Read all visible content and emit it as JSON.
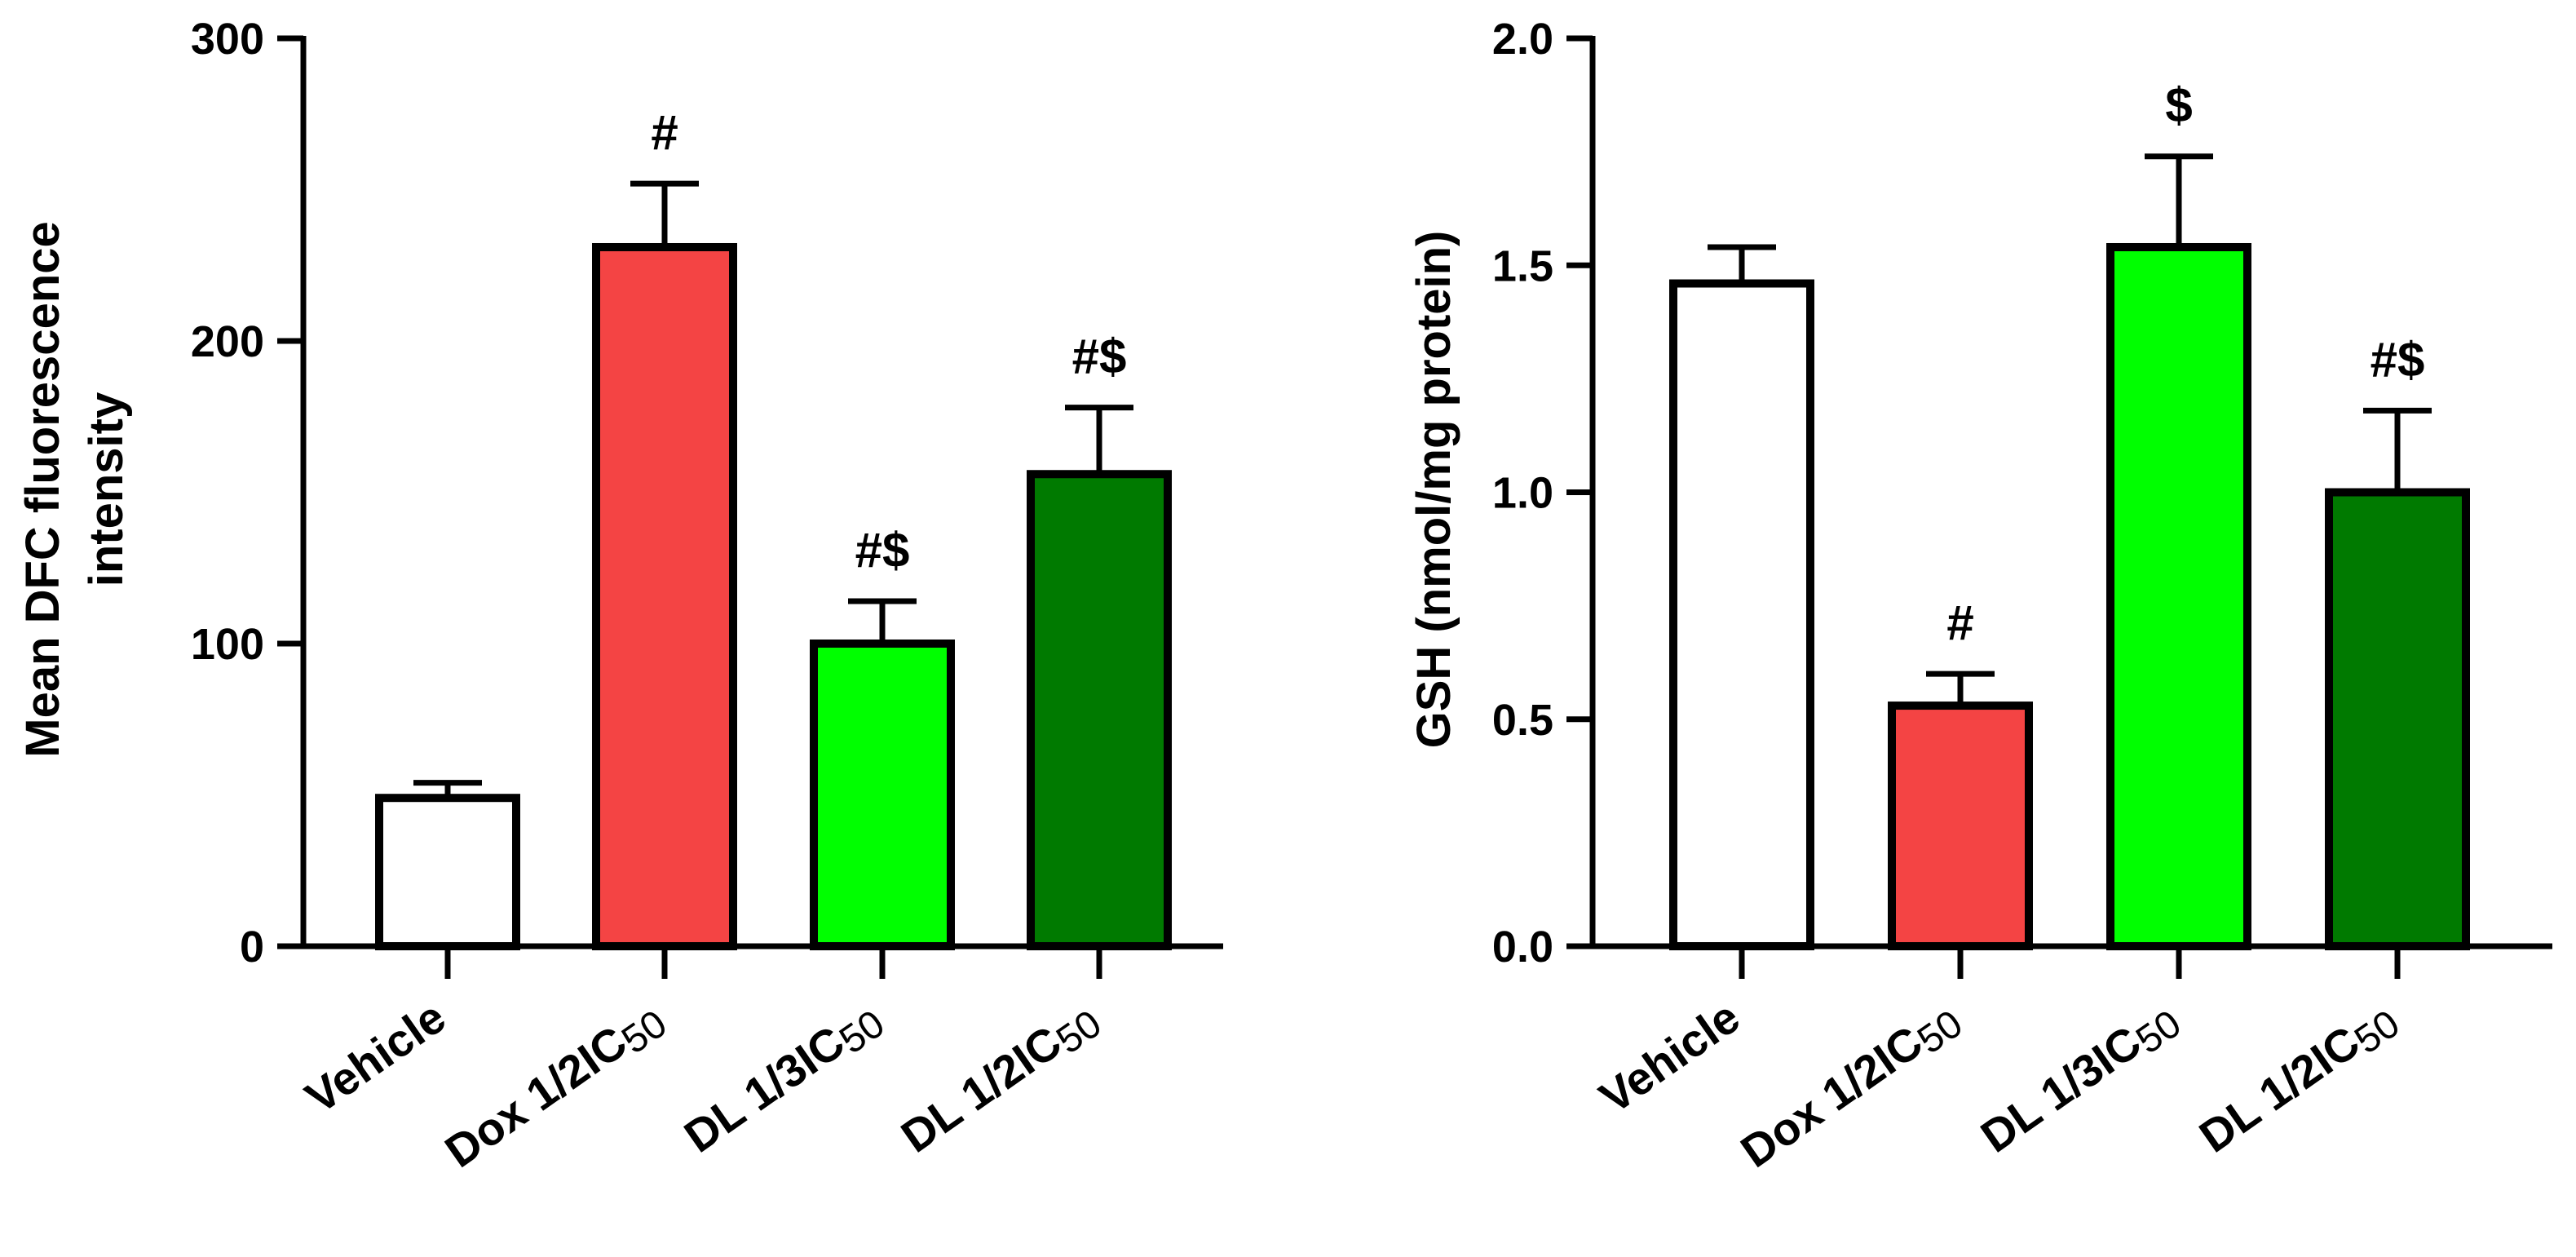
{
  "chart_data": [
    {
      "type": "bar",
      "ylabel": "Mean DFC fluorescence intensity",
      "ylabel_lines": [
        "Mean DFC fluorescence",
        "intensity"
      ],
      "ylim": [
        0,
        300
      ],
      "yticks": [
        0,
        100,
        200,
        300
      ],
      "ytick_labels": [
        "0",
        "100",
        "200",
        "300"
      ],
      "categories": [
        {
          "main": "Vehicle",
          "sub": ""
        },
        {
          "main": "Dox 1/2IC",
          "sub": "50"
        },
        {
          "main": "DL 1/3IC",
          "sub": "50"
        },
        {
          "main": "DL 1/2IC",
          "sub": "50"
        }
      ],
      "values": [
        49,
        231,
        100,
        156
      ],
      "errors": [
        5,
        21,
        14,
        22
      ],
      "annotations": [
        "",
        "#",
        "#$",
        "#$"
      ],
      "colors": [
        "#ffffff",
        "#f44444",
        "#00ff00",
        "#007a00"
      ]
    },
    {
      "type": "bar",
      "ylabel": "GSH (nmol/mg protein)",
      "ylabel_lines": [
        "GSH (nmol/mg protein)"
      ],
      "ylim": [
        0,
        2.0
      ],
      "yticks": [
        0,
        0.5,
        1.0,
        1.5,
        2.0
      ],
      "ytick_labels": [
        "0.0",
        "0.5",
        "1.0",
        "1.5",
        "2.0"
      ],
      "categories": [
        {
          "main": "Vehicle",
          "sub": ""
        },
        {
          "main": "Dox 1/2IC",
          "sub": "50"
        },
        {
          "main": "DL 1/3IC",
          "sub": "50"
        },
        {
          "main": "DL 1/2IC",
          "sub": "50"
        }
      ],
      "values": [
        1.46,
        0.53,
        1.54,
        1.0
      ],
      "errors": [
        0.08,
        0.07,
        0.2,
        0.18
      ],
      "annotations": [
        "",
        "#",
        "$",
        "#$"
      ],
      "colors": [
        "#ffffff",
        "#f44444",
        "#00ff00",
        "#007a00"
      ]
    }
  ]
}
